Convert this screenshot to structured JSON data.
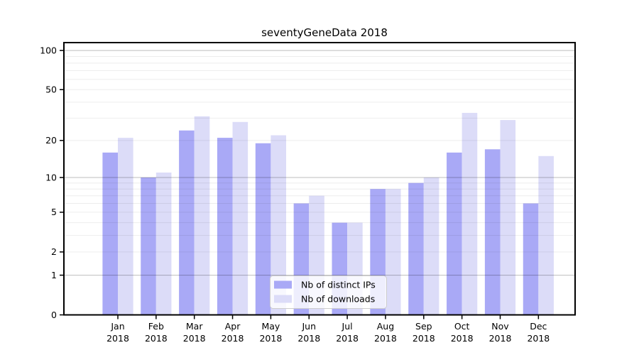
{
  "title": "seventyGeneData 2018",
  "chart_data": {
    "type": "bar",
    "title": "seventyGeneData 2018",
    "categories": [
      "Jan 2018",
      "Feb 2018",
      "Mar 2018",
      "Apr 2018",
      "May 2018",
      "Jun 2018",
      "Jul 2018",
      "Aug 2018",
      "Sep 2018",
      "Oct 2018",
      "Nov 2018",
      "Dec 2018"
    ],
    "x_tick_top": [
      "Jan",
      "Feb",
      "Mar",
      "Apr",
      "May",
      "Jun",
      "Jul",
      "Aug",
      "Sep",
      "Oct",
      "Nov",
      "Dec"
    ],
    "x_tick_bottom": "2018",
    "series": [
      {
        "name": "Nb of distinct IPs",
        "color": "#a9a9f6",
        "values": [
          16,
          10,
          24,
          21,
          19,
          6,
          4,
          8,
          9,
          16,
          17,
          6
        ]
      },
      {
        "name": "Nb of downloads",
        "color": "#dcdcf8",
        "values": [
          21,
          11,
          31,
          28,
          22,
          7,
          4,
          8,
          10,
          33,
          29,
          15
        ]
      }
    ],
    "y_ticks": [
      100,
      50,
      20,
      10,
      5,
      2,
      1,
      0
    ],
    "y_scale": "log1p",
    "ylim": [
      0,
      116
    ],
    "grid": true,
    "major_grid_values": [
      1,
      10,
      100
    ],
    "minor_grid_values": [
      2,
      3,
      4,
      5,
      6,
      7,
      8,
      9,
      20,
      30,
      40,
      50,
      60,
      70,
      80,
      90
    ],
    "legend_position": "lower center",
    "colors": {
      "axis": "#000000",
      "major_grid": "rgba(0,0,0,0.26)",
      "minor_grid": "rgba(0,0,0,0.07)",
      "legend_border": "#cccccc",
      "legend_fill": "#ffffff"
    }
  }
}
